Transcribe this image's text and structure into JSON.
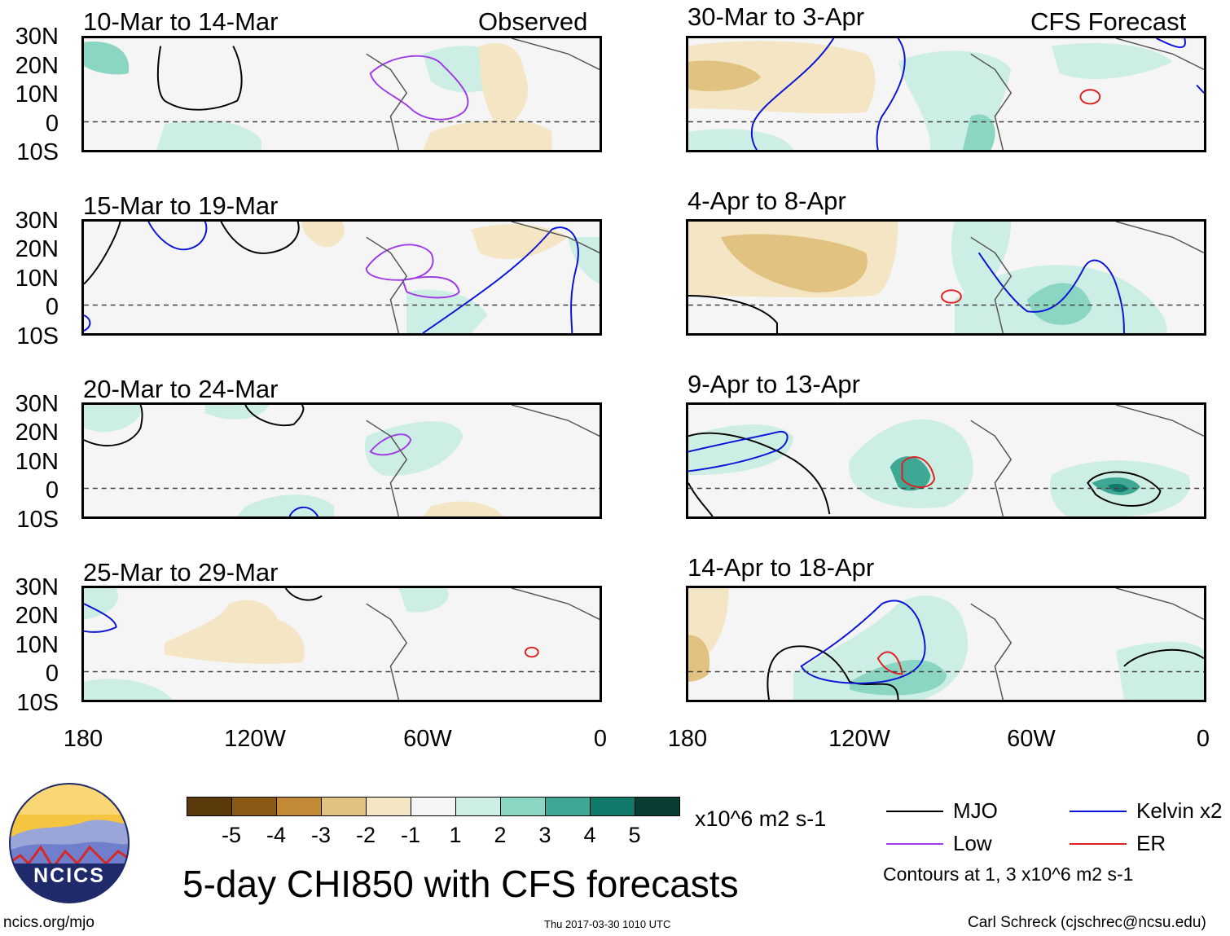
{
  "title": "5-day CHI850 with CFS forecasts",
  "left_label": "Observed",
  "right_label": "CFS Forecast",
  "lat_ticks": [
    "30N",
    "20N",
    "10N",
    "0",
    "10S"
  ],
  "lon_ticks": [
    "180",
    "120W",
    "60W",
    "0"
  ],
  "panels": [
    {
      "label": "10-Mar to 14-Mar"
    },
    {
      "label": "15-Mar to 19-Mar"
    },
    {
      "label": "20-Mar to 24-Mar"
    },
    {
      "label": "25-Mar to 29-Mar"
    },
    {
      "label": "30-Mar to 3-Apr"
    },
    {
      "label": "4-Apr to 8-Apr"
    },
    {
      "label": "9-Apr to 13-Apr"
    },
    {
      "label": "14-Apr to 18-Apr"
    }
  ],
  "colorbar": {
    "colors": [
      "#5a3a0a",
      "#8a5a14",
      "#c38a36",
      "#e2c281",
      "#f4e6c4",
      "#f5f5f5",
      "#cdeee4",
      "#8bd5c3",
      "#3ea895",
      "#107a6a",
      "#0a3d34"
    ],
    "ticks": [
      "-5",
      "-4",
      "-3",
      "-2",
      "-1",
      "1",
      "2",
      "3",
      "4",
      "5"
    ],
    "units": "x10^6 m2 s-1"
  },
  "legend": [
    {
      "label": "MJO",
      "color": "#000000"
    },
    {
      "label": "Kelvin x2",
      "color": "#0a14d6"
    },
    {
      "label": "Low",
      "color": "#a03be6"
    },
    {
      "label": "ER",
      "color": "#e02020"
    }
  ],
  "contours_note": "Contours at 1, 3 x10^6 m2 s-1",
  "logo_text": "NCICS",
  "footer": {
    "left": "ncics.org/mjo",
    "center": "Thu 2017-03-30 1010 UTC",
    "right": "Carl Schreck (cjschrec@ncsu.edu)"
  },
  "panel_fields": [
    {
      "light_green": 3,
      "light_tan": 2,
      "mjo": 1,
      "low": 1
    },
    {
      "light_green": 2,
      "light_tan": 2,
      "mjo": 2,
      "kelvin": 2,
      "low": 2
    },
    {
      "light_green": 3,
      "mjo": 2,
      "kelvin": 1,
      "low": 1
    },
    {
      "light_green": 3,
      "light_tan": 1,
      "kelvin": 1,
      "er": 1
    },
    {
      "light_green": 3,
      "light_tan": 2,
      "kelvin": 3,
      "er": 1
    },
    {
      "light_green": 3,
      "light_tan": 1,
      "kelvin": 1,
      "mjo": 1,
      "er": 1
    },
    {
      "light_green": 3,
      "mjo": 2,
      "kelvin": 1,
      "er": 1
    },
    {
      "light_green": 3,
      "light_tan": 2,
      "mjo": 2,
      "kelvin": 1,
      "er": 1
    }
  ]
}
